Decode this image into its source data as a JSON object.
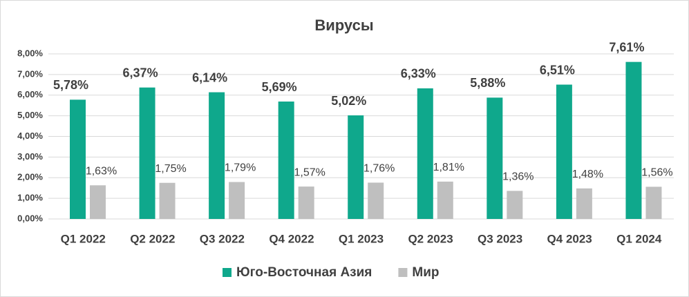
{
  "chart_data": {
    "type": "bar",
    "title": "Вирусы",
    "categories": [
      "Q1 2022",
      "Q2 2022",
      "Q3 2022",
      "Q4 2022",
      "Q1 2023",
      "Q2 2023",
      "Q3 2023",
      "Q4 2023",
      "Q1 2024"
    ],
    "series": [
      {
        "name": "Юго-Восточная Азия",
        "color": "#0fa88c",
        "values": [
          5.78,
          6.37,
          6.14,
          5.69,
          5.02,
          6.33,
          5.88,
          6.51,
          7.61
        ],
        "value_labels": [
          "5,78%",
          "6,37%",
          "6,14%",
          "5,69%",
          "5,02%",
          "6,33%",
          "5,88%",
          "6,51%",
          "7,61%"
        ]
      },
      {
        "name": "Мир",
        "color": "#bfbfbf",
        "values": [
          1.63,
          1.75,
          1.79,
          1.57,
          1.76,
          1.81,
          1.36,
          1.48,
          1.56
        ],
        "value_labels": [
          "1,63%",
          "1,75%",
          "1,79%",
          "1,57%",
          "1,76%",
          "1,81%",
          "1,36%",
          "1,48%",
          "1,56%"
        ]
      }
    ],
    "ylim": [
      0,
      8
    ],
    "yticks": [
      {
        "value": 0,
        "label": "0,00%"
      },
      {
        "value": 1,
        "label": "1,00%"
      },
      {
        "value": 2,
        "label": "2,00%"
      },
      {
        "value": 3,
        "label": "3,00%"
      },
      {
        "value": 4,
        "label": "4,00%"
      },
      {
        "value": 5,
        "label": "5,00%"
      },
      {
        "value": 6,
        "label": "6,00%"
      },
      {
        "value": 7,
        "label": "7,00%"
      },
      {
        "value": 8,
        "label": "8,00%"
      }
    ],
    "grid": true,
    "legend": "bottom"
  }
}
